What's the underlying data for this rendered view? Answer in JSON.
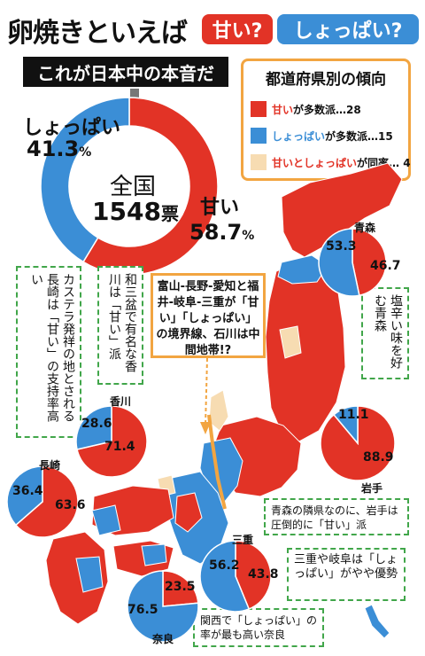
{
  "header": {
    "title": "卵焼きといえば",
    "option_sweet": "甘い?",
    "option_salty": "しょっぱい?",
    "banner": "これが日本中の本音だ"
  },
  "legend": {
    "title": "都道府県別の傾向",
    "items": [
      {
        "lead": "甘い",
        "text": "が多数派…28",
        "color": "#e23326",
        "lead_color": "#e23326"
      },
      {
        "lead": "しょっぱい",
        "text": "が多数派…15",
        "color": "#3b8ed6",
        "lead_color": "#3b8ed6"
      },
      {
        "lead": "甘いとしょっぱい",
        "text": "が同率… 4",
        "color": "#f7dcb2",
        "lead_color": "#e23326"
      }
    ]
  },
  "national": {
    "label": "全国",
    "votes": "1548",
    "votes_unit": "票",
    "sweet_label": "甘い",
    "salty_label": "しょっぱい",
    "pct_unit": "%"
  },
  "notes": {
    "nagasaki": "カステラ発祥の地とされる長崎は「甘い」の支持率高い",
    "kagawa": "和三盆で有名な香川は「甘い」派",
    "aomori": "塩辛い味を好む青森",
    "iwate": "青森の隣県なのに、岩手は圧倒的に「甘い」派",
    "mie_gifu": "三重や岐阜は「しょっぱい」がやや優勢",
    "nara": "関西で「しょっぱい」の率が最も高い奈良",
    "border": "富山-長野-愛知と福井-岐阜-三重が「甘い」「しょっぱい」の境界線、石川は中間地帯!?"
  },
  "colors": {
    "sweet": "#e23326",
    "salty": "#3b8ed6",
    "tie": "#f7dcb2",
    "accent": "#f2a541",
    "note_border": "#41a64a"
  },
  "chart_data": [
    {
      "type": "pie",
      "name": "全国",
      "categories": [
        "甘い",
        "しょっぱい"
      ],
      "values": [
        58.7,
        41.3
      ],
      "total_votes": 1548
    },
    {
      "type": "pie",
      "name": "青森",
      "categories": [
        "甘い",
        "しょっぱい"
      ],
      "values": [
        46.7,
        53.3
      ]
    },
    {
      "type": "pie",
      "name": "岩手",
      "categories": [
        "甘い",
        "しょっぱい"
      ],
      "values": [
        88.9,
        11.1
      ]
    },
    {
      "type": "pie",
      "name": "香川",
      "categories": [
        "甘い",
        "しょっぱい"
      ],
      "values": [
        71.4,
        28.6
      ]
    },
    {
      "type": "pie",
      "name": "長崎",
      "categories": [
        "甘い",
        "しょっぱい"
      ],
      "values": [
        63.6,
        36.4
      ]
    },
    {
      "type": "pie",
      "name": "三重",
      "categories": [
        "甘い",
        "しょっぱい"
      ],
      "values": [
        43.8,
        56.2
      ]
    },
    {
      "type": "pie",
      "name": "奈良",
      "categories": [
        "甘い",
        "しょっぱい"
      ],
      "values": [
        23.5,
        76.5
      ]
    }
  ]
}
